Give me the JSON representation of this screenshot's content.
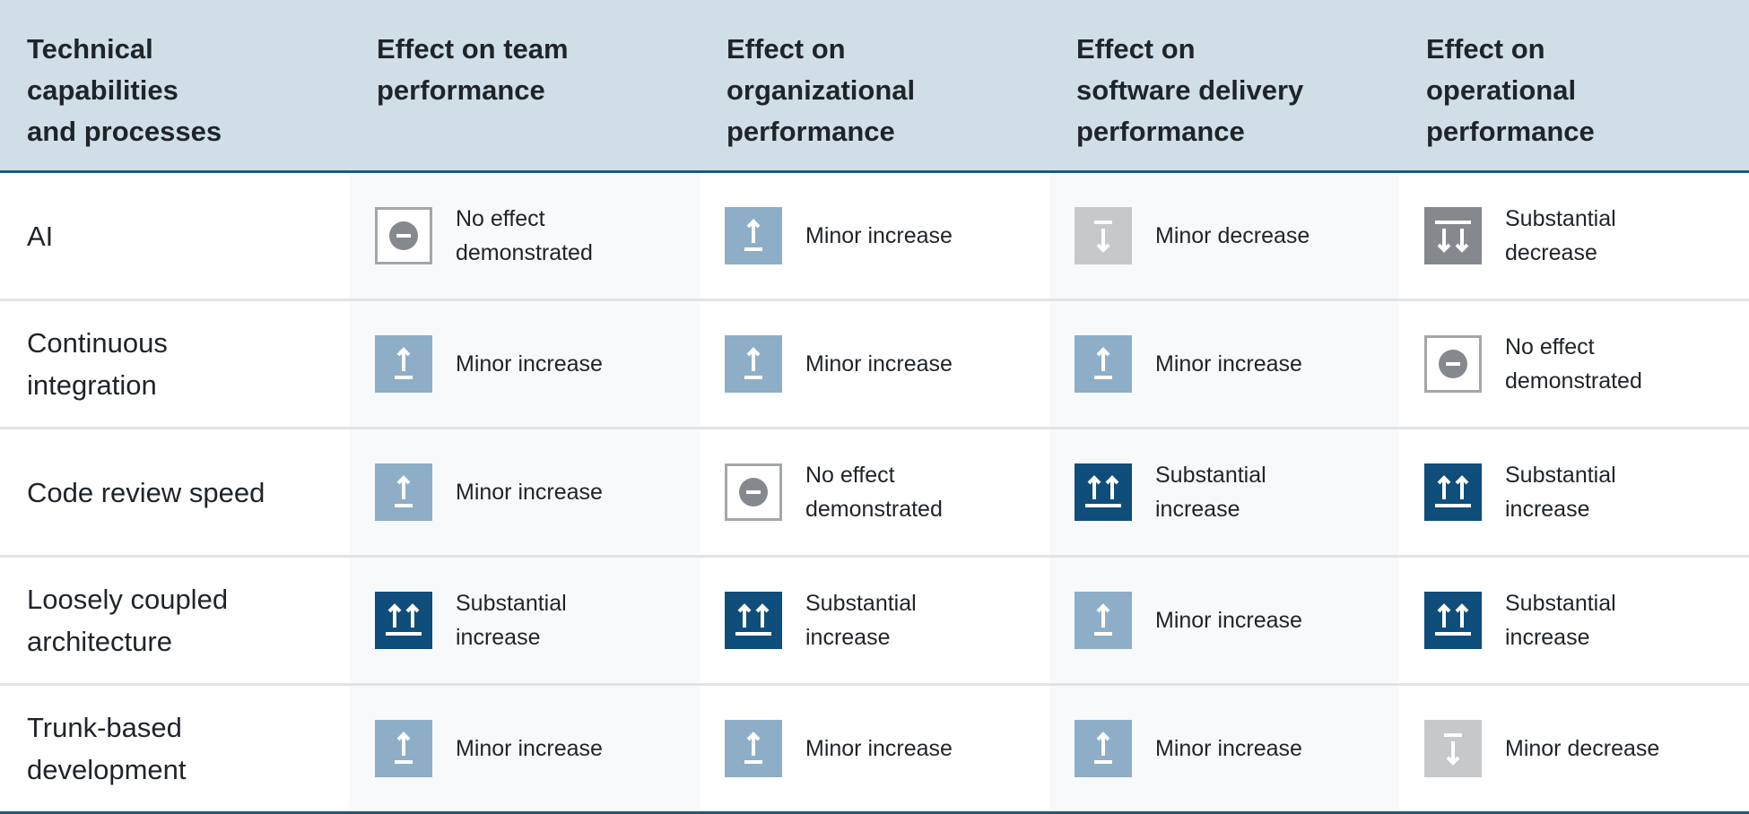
{
  "header": [
    [
      "Technical",
      "capabilities",
      "and processes"
    ],
    [
      "Effect on team",
      "performance"
    ],
    [
      "Effect on",
      "organizational",
      "performance"
    ],
    [
      "Effect on",
      "software delivery",
      "performance"
    ],
    [
      "Effect on",
      "operational",
      "performance"
    ]
  ],
  "rows": [
    {
      "name": [
        "AI"
      ],
      "effects": [
        {
          "icon": "no-effect-icon",
          "text": [
            "No effect",
            "demonstrated"
          ]
        },
        {
          "icon": "minor-increase-icon",
          "text": [
            "Minor increase"
          ]
        },
        {
          "icon": "minor-decrease-icon",
          "text": [
            "Minor decrease"
          ]
        },
        {
          "icon": "substantial-decrease-icon",
          "text": [
            "Substantial",
            "decrease"
          ]
        }
      ]
    },
    {
      "name": [
        "Continuous",
        "integration"
      ],
      "effects": [
        {
          "icon": "minor-increase-icon",
          "text": [
            "Minor increase"
          ]
        },
        {
          "icon": "minor-increase-icon",
          "text": [
            "Minor increase"
          ]
        },
        {
          "icon": "minor-increase-icon",
          "text": [
            "Minor increase"
          ]
        },
        {
          "icon": "no-effect-icon",
          "text": [
            "No effect",
            "demonstrated"
          ]
        }
      ]
    },
    {
      "name": [
        "Code review speed"
      ],
      "effects": [
        {
          "icon": "minor-increase-icon",
          "text": [
            "Minor increase"
          ]
        },
        {
          "icon": "no-effect-icon",
          "text": [
            "No effect",
            "demonstrated"
          ]
        },
        {
          "icon": "substantial-increase-icon",
          "text": [
            "Substantial",
            "increase"
          ]
        },
        {
          "icon": "substantial-increase-icon",
          "text": [
            "Substantial",
            "increase"
          ]
        }
      ]
    },
    {
      "name": [
        "Loosely coupled",
        "architecture"
      ],
      "effects": [
        {
          "icon": "substantial-increase-icon",
          "text": [
            "Substantial",
            "increase"
          ]
        },
        {
          "icon": "substantial-increase-icon",
          "text": [
            "Substantial",
            "increase"
          ]
        },
        {
          "icon": "minor-increase-icon",
          "text": [
            "Minor increase"
          ]
        },
        {
          "icon": "substantial-increase-icon",
          "text": [
            "Substantial",
            "increase"
          ]
        }
      ]
    },
    {
      "name": [
        "Trunk-based",
        "development"
      ],
      "effects": [
        {
          "icon": "minor-increase-icon",
          "text": [
            "Minor increase"
          ]
        },
        {
          "icon": "minor-increase-icon",
          "text": [
            "Minor increase"
          ]
        },
        {
          "icon": "minor-increase-icon",
          "text": [
            "Minor increase"
          ]
        },
        {
          "icon": "minor-decrease-icon",
          "text": [
            "Minor decrease"
          ]
        }
      ]
    }
  ],
  "colors": {
    "header_bg": "#d0dee8",
    "rule_dark": "#1d5a80",
    "minor_increase": "#8daec6",
    "minor_decrease": "#c6c8ca",
    "substantial_increase": "#0f4d7a",
    "substantial_decrease": "#85888c",
    "no_effect_circle": "#85888c"
  }
}
